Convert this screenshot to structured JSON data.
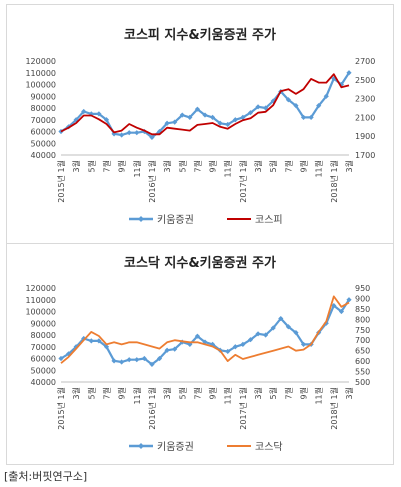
{
  "source_note": "[출처:버핏연구소]",
  "charts": [
    {
      "title": "코스피 지수&키움증권 주가",
      "left_ticks": [
        "40000",
        "50000",
        "60000",
        "70000",
        "80000",
        "90000",
        "100000",
        "110000",
        "120000"
      ],
      "right_ticks": [
        "1700",
        "1900",
        "2100",
        "2300",
        "2500",
        "2700"
      ],
      "x_tick_labels": [
        "2015년 1월",
        "3월",
        "5월",
        "7월",
        "9월",
        "11월",
        "2016년 1월",
        "3월",
        "5월",
        "7월",
        "9월",
        "11월",
        "2017년 1월",
        "3월",
        "5월",
        "7월",
        "9월",
        "11월",
        "2018년 1월",
        "3월"
      ],
      "legend": [
        "키움증권",
        "코스피"
      ]
    },
    {
      "title": "코스닥 지수&키움증권 주가",
      "left_ticks": [
        "40000",
        "50000",
        "60000",
        "70000",
        "80000",
        "90000",
        "100000",
        "110000",
        "120000"
      ],
      "right_ticks": [
        "500",
        "550",
        "600",
        "650",
        "700",
        "750",
        "800",
        "850",
        "900",
        "950"
      ],
      "x_tick_labels": [
        "2015년 1월",
        "3월",
        "5월",
        "7월",
        "9월",
        "11월",
        "2016년 1월",
        "3월",
        "5월",
        "7월",
        "9월",
        "11월",
        "2017년 1월",
        "3월",
        "5월",
        "7월",
        "9월",
        "11월",
        "2018년 1월",
        "3월"
      ],
      "legend": [
        "키움증권",
        "코스닥"
      ]
    }
  ],
  "chart_data": [
    {
      "type": "line",
      "title": "코스피 지수&키움증권 주가",
      "x": [
        "2015-01",
        "2015-02",
        "2015-03",
        "2015-04",
        "2015-05",
        "2015-06",
        "2015-07",
        "2015-08",
        "2015-09",
        "2015-10",
        "2015-11",
        "2015-12",
        "2016-01",
        "2016-02",
        "2016-03",
        "2016-04",
        "2016-05",
        "2016-06",
        "2016-07",
        "2016-08",
        "2016-09",
        "2016-10",
        "2016-11",
        "2016-12",
        "2017-01",
        "2017-02",
        "2017-03",
        "2017-04",
        "2017-05",
        "2017-06",
        "2017-07",
        "2017-08",
        "2017-09",
        "2017-10",
        "2017-11",
        "2017-12",
        "2018-01",
        "2018-02",
        "2018-03"
      ],
      "x_ticks": [
        "2015년 1월",
        "3월",
        "5월",
        "7월",
        "9월",
        "11월",
        "2016년 1월",
        "3월",
        "5월",
        "7월",
        "9월",
        "11월",
        "2017년 1월",
        "3월",
        "5월",
        "7월",
        "9월",
        "11월",
        "2018년 1월",
        "3월"
      ],
      "y_left_lim": [
        40000,
        120000
      ],
      "y_right_lim": [
        1700,
        2700
      ],
      "series": [
        {
          "name": "키움증권",
          "axis": "left",
          "color": "#5b9bd5",
          "marker": "diamond",
          "values": [
            60000,
            64000,
            70000,
            77000,
            75000,
            75000,
            70000,
            58000,
            57000,
            59000,
            59000,
            60000,
            55000,
            60000,
            67000,
            68000,
            74000,
            72000,
            79000,
            74000,
            72000,
            67000,
            66000,
            70000,
            72000,
            76000,
            81000,
            80000,
            86000,
            94000,
            87000,
            82000,
            72000,
            72000,
            82000,
            90000,
            105000,
            100000,
            110000
          ]
        },
        {
          "name": "코스피",
          "axis": "right",
          "color": "#c00000",
          "marker": "none",
          "values": [
            1950,
            1990,
            2040,
            2120,
            2120,
            2080,
            2030,
            1940,
            1960,
            2030,
            1990,
            1960,
            1920,
            1920,
            1990,
            1980,
            1970,
            1960,
            2020,
            2030,
            2040,
            2000,
            1980,
            2030,
            2070,
            2090,
            2150,
            2160,
            2230,
            2380,
            2400,
            2350,
            2400,
            2510,
            2470,
            2470,
            2560,
            2420,
            2440
          ]
        }
      ]
    },
    {
      "type": "line",
      "title": "코스닥 지수&키움증권 주가",
      "x": [
        "2015-01",
        "2015-02",
        "2015-03",
        "2015-04",
        "2015-05",
        "2015-06",
        "2015-07",
        "2015-08",
        "2015-09",
        "2015-10",
        "2015-11",
        "2015-12",
        "2016-01",
        "2016-02",
        "2016-03",
        "2016-04",
        "2016-05",
        "2016-06",
        "2016-07",
        "2016-08",
        "2016-09",
        "2016-10",
        "2016-11",
        "2016-12",
        "2017-01",
        "2017-02",
        "2017-03",
        "2017-04",
        "2017-05",
        "2017-06",
        "2017-07",
        "2017-08",
        "2017-09",
        "2017-10",
        "2017-11",
        "2017-12",
        "2018-01",
        "2018-02",
        "2018-03"
      ],
      "x_ticks": [
        "2015년 1월",
        "3월",
        "5월",
        "7월",
        "9월",
        "11월",
        "2016년 1월",
        "3월",
        "5월",
        "7월",
        "9월",
        "11월",
        "2017년 1월",
        "3월",
        "5월",
        "7월",
        "9월",
        "11월",
        "2018년 1월",
        "3월"
      ],
      "y_left_lim": [
        40000,
        120000
      ],
      "y_right_lim": [
        500,
        950
      ],
      "series": [
        {
          "name": "키움증권",
          "axis": "left",
          "color": "#5b9bd5",
          "marker": "diamond",
          "values": [
            60000,
            64000,
            70000,
            77000,
            75000,
            75000,
            70000,
            58000,
            57000,
            59000,
            59000,
            60000,
            55000,
            60000,
            67000,
            68000,
            74000,
            72000,
            79000,
            74000,
            72000,
            67000,
            66000,
            70000,
            72000,
            76000,
            81000,
            80000,
            86000,
            94000,
            87000,
            82000,
            72000,
            72000,
            82000,
            90000,
            105000,
            100000,
            110000
          ]
        },
        {
          "name": "코스닥",
          "axis": "right",
          "color": "#ed7d31",
          "marker": "none",
          "values": [
            590,
            620,
            660,
            700,
            740,
            720,
            680,
            690,
            680,
            690,
            690,
            680,
            670,
            660,
            690,
            700,
            695,
            690,
            690,
            680,
            670,
            650,
            600,
            630,
            610,
            620,
            630,
            640,
            650,
            660,
            670,
            650,
            655,
            680,
            740,
            790,
            910,
            860,
            880
          ]
        }
      ]
    }
  ]
}
